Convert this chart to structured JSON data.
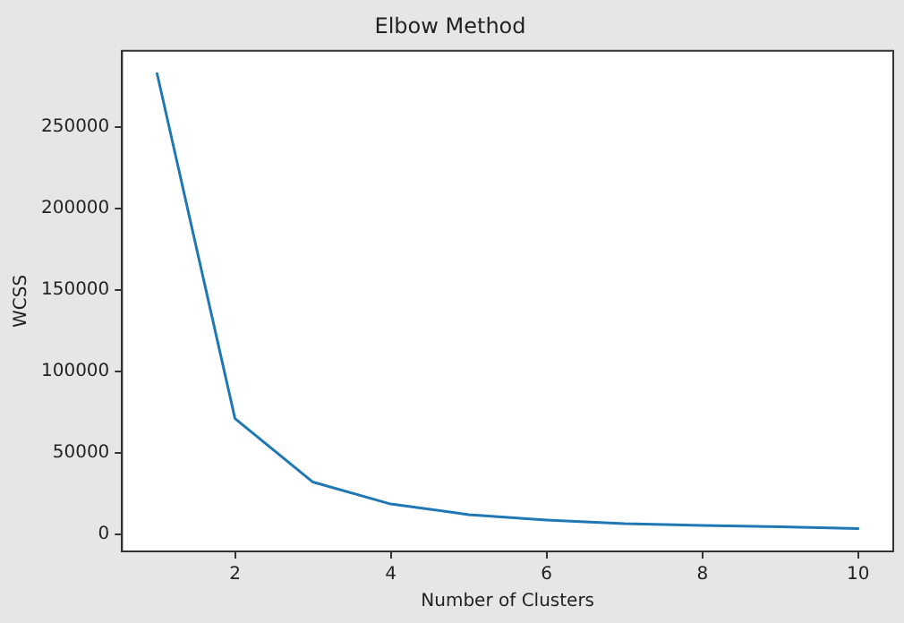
{
  "chart_data": {
    "type": "line",
    "title": "Elbow Method",
    "xlabel": "Number of Clusters",
    "ylabel": "WCSS",
    "x": [
      1,
      2,
      3,
      4,
      5,
      6,
      7,
      8,
      9,
      10
    ],
    "series": [
      {
        "color": "#1f77b4",
        "values": [
          283000,
          71000,
          32000,
          18500,
          12000,
          8700,
          6400,
          5300,
          4500,
          3400
        ]
      }
    ],
    "xlim": [
      0.55,
      10.45
    ],
    "xticks": [
      2,
      4,
      6,
      8,
      10
    ],
    "ylim": [
      -10600,
      297000
    ],
    "yticks": [
      0,
      50000,
      100000,
      150000,
      200000,
      250000
    ],
    "grid": false,
    "legend": false,
    "marker": "none",
    "line_style": "solid"
  }
}
